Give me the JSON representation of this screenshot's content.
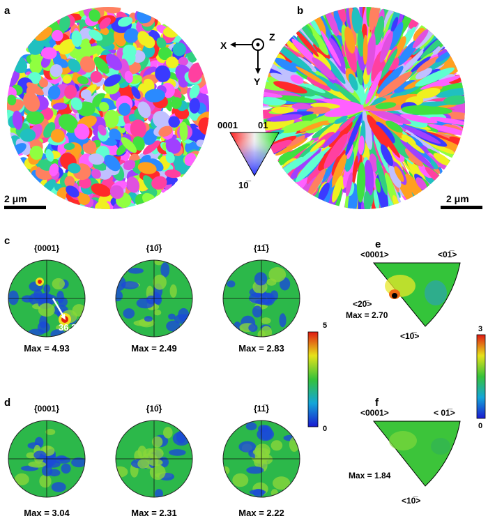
{
  "panels": {
    "a": {
      "letter": "a",
      "scale_bar": "2 μm"
    },
    "b": {
      "letter": "b",
      "scale_bar": "2 μm"
    },
    "c": {
      "letter": "c",
      "poles": [
        {
          "title": "{0001}",
          "max": "Max = 4.93",
          "angle": "36.27°"
        },
        {
          "title": "{10̅}",
          "max": "Max = 2.49"
        },
        {
          "title": "{11̅}",
          "max": "Max = 2.83"
        }
      ]
    },
    "d": {
      "letter": "d",
      "poles": [
        {
          "title": "{0001}",
          "max": "Max = 3.04"
        },
        {
          "title": "{10̅}",
          "max": "Max = 2.31"
        },
        {
          "title": "{11̅}",
          "max": "Max = 2.22"
        }
      ]
    },
    "e": {
      "letter": "e",
      "corner_0001": "<0001>",
      "corner_01-10": "<01̅>",
      "corner_10-10": "<10̅>",
      "point": "<20̅>",
      "max": "Max = 2.70"
    },
    "f": {
      "letter": "f",
      "corner_0001": "<0001>",
      "corner_01-10": "< 01̅>",
      "corner_10-10": "<10̅>",
      "max": "Max = 1.84"
    }
  },
  "axes_diagram": {
    "x": "X",
    "y": "Y",
    "z": "Z"
  },
  "ipf_key": {
    "top_left": "0001",
    "top_right": "01̅",
    "bottom": "10̅"
  },
  "colorbar_pole": {
    "max": "5",
    "min": "0"
  },
  "colorbar_ipf": {
    "max": "3",
    "min": "0"
  },
  "colors": {
    "low": "#1a3fd8",
    "mid": "#2fc02a",
    "high": "#e8251a"
  }
}
